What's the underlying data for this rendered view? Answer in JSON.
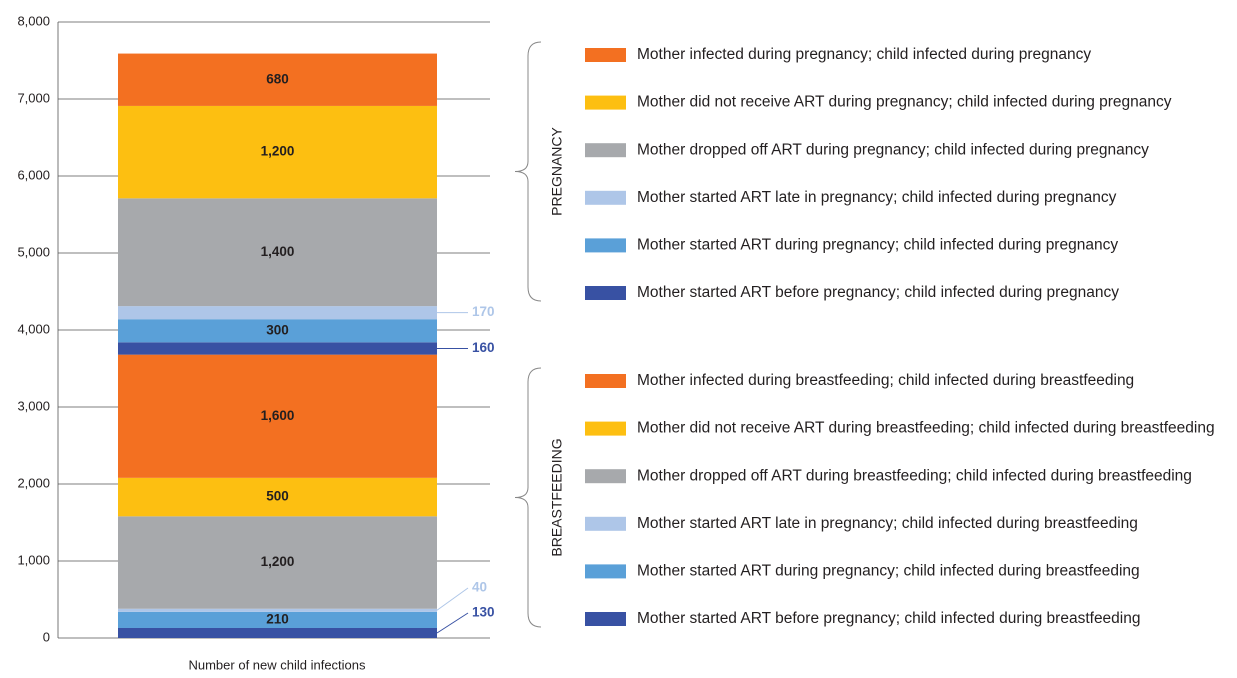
{
  "chart_data": {
    "type": "stacked_bar",
    "x_label": "Number of new child infections",
    "categories": [
      null
    ],
    "ylim": [
      0,
      8000
    ],
    "yticks": [
      0,
      {
        "value": 1000,
        "label": "1,000"
      },
      {
        "value": 2000,
        "label": "2,000"
      },
      {
        "value": 3000,
        "label": "3,000"
      },
      {
        "value": 4000,
        "label": "4,000"
      },
      {
        "value": 5000,
        "label": "5,000"
      },
      {
        "value": 6000,
        "label": "6,000"
      },
      {
        "value": 7000,
        "label": "7,000"
      },
      {
        "value": 8000,
        "label": "8,000"
      }
    ],
    "grid": true,
    "groups": [
      "BREASTFEEDING",
      "PREGNANCY"
    ],
    "series": [
      {
        "name": "Mother started ART before pregnancy; child infected during breastfeeding",
        "color": "#3851a3",
        "values": [
          130
        ]
      },
      {
        "name": "Mother started ART during pregnancy; child infected during breastfeeding",
        "color": "#5aa0d8",
        "values": [
          210
        ]
      },
      {
        "name": "Mother started ART late in pregnancy; child infected during breastfeeding",
        "color": "#aec6e8",
        "values": [
          40
        ]
      },
      {
        "name": "Mother dropped off ART during breastfeeding; child infected during breastfeeding",
        "color": "#a7a9ac",
        "values": [
          1200
        ],
        "value_labels": [
          "1,200"
        ]
      },
      {
        "name": "Mother did not receive ART during breastfeeding; child infected during breastfeeding",
        "color": "#fdbf11",
        "values": [
          500
        ]
      },
      {
        "name": "Mother infected during breastfeeding; child infected during breastfeeding",
        "color": "#f37021",
        "values": [
          1600
        ],
        "value_labels": [
          "1,600"
        ]
      },
      {
        "name": "Mother started ART before pregnancy; child infected during pregnancy",
        "color": "#3851a3",
        "values": [
          160
        ]
      },
      {
        "name": "Mother started ART during pregnancy; child infected during pregnancy",
        "color": "#5aa0d8",
        "values": [
          300
        ]
      },
      {
        "name": "Mother started ART late in pregnancy; child infected during pregnancy",
        "color": "#aec6e8",
        "values": [
          170
        ]
      },
      {
        "name": "Mother dropped off ART during pregnancy; child infected during pregnancy",
        "color": "#a7a9ac",
        "values": [
          1400
        ],
        "value_labels": [
          "1,400"
        ]
      },
      {
        "name": "Mother did not receive ART during pregnancy; child infected during pregnancy",
        "color": "#fdbf11",
        "values": [
          1200
        ],
        "value_labels": [
          "1,200"
        ]
      },
      {
        "name": "Mother infected during pregnancy; child infected during pregnancy",
        "color": "#f37021",
        "values": [
          680
        ]
      }
    ]
  }
}
